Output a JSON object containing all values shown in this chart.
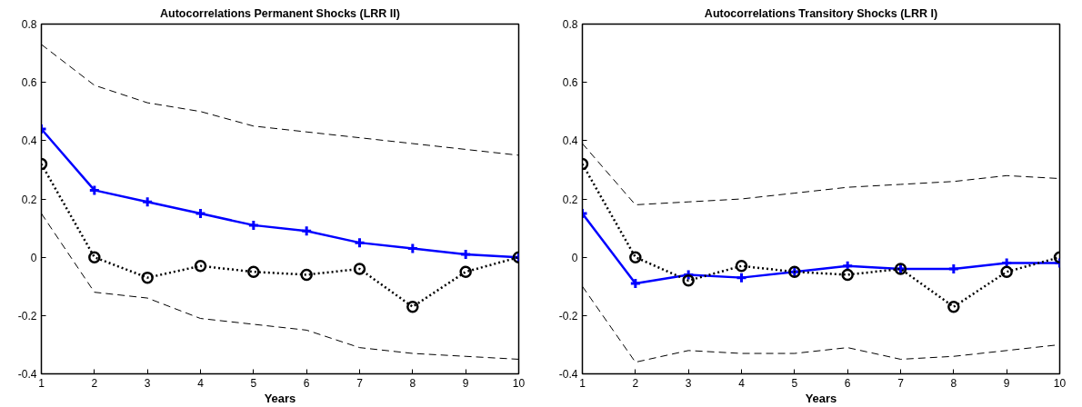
{
  "chart_data": [
    {
      "type": "line",
      "title": "Autocorrelations Permanent Shocks (LRR II)",
      "xlabel": "Years",
      "x": [
        1,
        2,
        3,
        4,
        5,
        6,
        7,
        8,
        9,
        10
      ],
      "xlim": [
        1,
        10
      ],
      "xticks": [
        1,
        2,
        3,
        4,
        5,
        6,
        7,
        8,
        9,
        10
      ],
      "ylim": [
        -0.4,
        0.8
      ],
      "yticks": [
        -0.4,
        -0.2,
        0,
        0.2,
        0.4,
        0.6,
        0.8
      ],
      "grid": false,
      "series": [
        {
          "color": "#000000",
          "line_style": "dashed",
          "marker": "none",
          "values": [
            0.73,
            0.59,
            0.53,
            0.5,
            0.45,
            0.43,
            0.41,
            0.39,
            0.37,
            0.35
          ]
        },
        {
          "color": "#000000",
          "line_style": "dashed",
          "marker": "none",
          "values": [
            0.15,
            -0.12,
            -0.14,
            -0.21,
            -0.23,
            -0.25,
            -0.31,
            -0.33,
            -0.34,
            -0.35
          ]
        },
        {
          "color": "#0000ff",
          "line_style": "solid",
          "marker": "cross",
          "values": [
            0.44,
            0.23,
            0.19,
            0.15,
            0.11,
            0.09,
            0.05,
            0.03,
            0.01,
            0.0
          ]
        },
        {
          "color": "#000000",
          "line_style": "dotted",
          "marker": "circle",
          "values": [
            0.32,
            0.0,
            -0.07,
            -0.03,
            -0.05,
            -0.06,
            -0.04,
            -0.17,
            -0.05,
            0.0
          ]
        }
      ]
    },
    {
      "type": "line",
      "title": "Autocorrelations Transitory Shocks (LRR I)",
      "xlabel": "Years",
      "x": [
        1,
        2,
        3,
        4,
        5,
        6,
        7,
        8,
        9,
        10
      ],
      "xlim": [
        1,
        10
      ],
      "xticks": [
        1,
        2,
        3,
        4,
        5,
        6,
        7,
        8,
        9,
        10
      ],
      "ylim": [
        -0.4,
        0.8
      ],
      "yticks": [
        -0.4,
        -0.2,
        0,
        0.2,
        0.4,
        0.6,
        0.8
      ],
      "grid": false,
      "series": [
        {
          "color": "#000000",
          "line_style": "dashed",
          "marker": "none",
          "values": [
            0.39,
            0.18,
            0.19,
            0.2,
            0.22,
            0.24,
            0.25,
            0.26,
            0.28,
            0.27
          ]
        },
        {
          "color": "#000000",
          "line_style": "dashed",
          "marker": "none",
          "values": [
            -0.1,
            -0.36,
            -0.32,
            -0.33,
            -0.33,
            -0.31,
            -0.35,
            -0.34,
            -0.32,
            -0.3
          ]
        },
        {
          "color": "#0000ff",
          "line_style": "solid",
          "marker": "cross",
          "values": [
            0.15,
            -0.09,
            -0.06,
            -0.07,
            -0.05,
            -0.03,
            -0.04,
            -0.04,
            -0.02,
            -0.02
          ]
        },
        {
          "color": "#000000",
          "line_style": "dotted",
          "marker": "circle",
          "values": [
            0.32,
            0.0,
            -0.08,
            -0.03,
            -0.05,
            -0.06,
            -0.04,
            -0.17,
            -0.05,
            0.0
          ]
        }
      ]
    }
  ]
}
